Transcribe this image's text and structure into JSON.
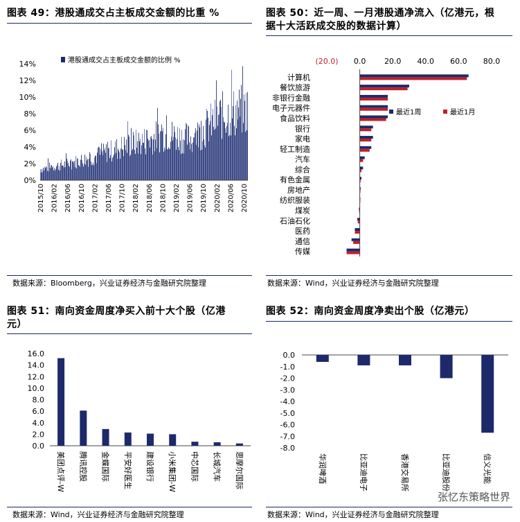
{
  "panels": {
    "p49": {
      "title": "图表 49：港股通成交占主板成交金额的比重 %",
      "source": "数据来源：Bloomberg，兴业证券经济与金融研究院整理"
    },
    "p50": {
      "title_l1": "图表 50：近一周、一月港股通净流入（亿港元，根",
      "title_l2": "据十大活跃成交股的数据计算）",
      "source": "数据来源：Wind，兴业证券经济与金融研究院整理"
    },
    "p51": {
      "title_l1": "图表 51：南向资金周度净买入前十大个股（亿港",
      "title_l2": "元）",
      "source": "数据来源：Wind，兴业证券经济与金融研究院整理"
    },
    "p52": {
      "title": "图表 52：南向资金周度净卖出个股（亿港元）",
      "source": "数据来源：Wind，兴业证券经济与金融研究院整理"
    }
  },
  "watermark": "张忆东策略世界",
  "colors": {
    "navy": "#1c2a6b",
    "red": "#c0202a",
    "rule": "#1a2a5a"
  },
  "chart_data": [
    {
      "id": "c49",
      "type": "bar",
      "legend": "港股通成交占主板成交金额的比例 %",
      "legend_position": "top-left",
      "ylim": [
        0,
        14
      ],
      "yticks": [
        "0%",
        "2%",
        "4%",
        "6%",
        "8%",
        "10%",
        "12%",
        "14%"
      ],
      "xticks": [
        "2015/10",
        "2016/02",
        "2016/06",
        "2016/10",
        "2017/02",
        "2017/06",
        "2017/10",
        "2018/02",
        "2018/06",
        "2018/10",
        "2019/02",
        "2019/06",
        "2019/10",
        "2020/02",
        "2020/06",
        "2020/10"
      ],
      "trend_anchors": [
        [
          0,
          1.5
        ],
        [
          2,
          2.2
        ],
        [
          4,
          3.2
        ],
        [
          6,
          4.5
        ],
        [
          8,
          5.5
        ],
        [
          9,
          6.2
        ],
        [
          10,
          5.8
        ],
        [
          11,
          5.5
        ],
        [
          12,
          7.0
        ],
        [
          13,
          8.5
        ],
        [
          14,
          9.0
        ],
        [
          15,
          9.5
        ]
      ]
    },
    {
      "id": "c50",
      "type": "bar",
      "orientation": "horizontal",
      "xlim": [
        -20,
        80
      ],
      "xticks": [
        "(20.0)",
        "0.0",
        "20.0",
        "40.0",
        "60.0",
        "80.0"
      ],
      "categories": [
        "计算机",
        "餐饮旅游",
        "非银行金融",
        "电子元器件",
        "食品饮料",
        "银行",
        "家电",
        "轻工制造",
        "汽车",
        "综合",
        "有色金属",
        "房地产",
        "纺织服装",
        "煤炭",
        "石油石化",
        "医药",
        "通信",
        "传媒"
      ],
      "series": [
        {
          "name": "最近1周",
          "color": "#1c2a6b",
          "values": [
            66,
            30,
            17,
            17,
            17,
            8,
            8,
            7,
            3,
            2,
            1,
            0.5,
            0.3,
            -0.5,
            -1.5,
            -3,
            -5,
            -8
          ]
        },
        {
          "name": "最近1月",
          "color": "#c0202a",
          "values": [
            65,
            29,
            17,
            17,
            16,
            7,
            7,
            6,
            2,
            1,
            0.5,
            0.4,
            0.2,
            -0.4,
            -1.2,
            -3,
            -4,
            -8
          ]
        }
      ],
      "legend_position": "right"
    },
    {
      "id": "c51",
      "type": "bar",
      "ylim": [
        0,
        16
      ],
      "yticks": [
        "0.0",
        "2.0",
        "4.0",
        "6.0",
        "8.0",
        "10.0",
        "12.0",
        "14.0",
        "16.0"
      ],
      "categories": [
        "美团点评-W",
        "腾讯控股",
        "金蝶国际",
        "平安好医生",
        "建设银行",
        "小米集团-W",
        "中芯国际",
        "长城汽车",
        "思摩尔国际"
      ],
      "values": [
        15.2,
        6.1,
        2.9,
        2.3,
        2.1,
        2.0,
        0.7,
        0.6,
        0.4
      ]
    },
    {
      "id": "c52",
      "type": "bar",
      "ylim": [
        -8,
        0
      ],
      "yticks": [
        "0.0",
        "-1.0",
        "-2.0",
        "-3.0",
        "-4.0",
        "-5.0",
        "-6.0",
        "-7.0",
        "-8.0"
      ],
      "categories": [
        "华润啤酒",
        "比亚迪电子",
        "香港交易所",
        "比亚迪股份",
        "信义光能"
      ],
      "values": [
        -0.6,
        -0.9,
        -0.9,
        -2.0,
        -6.7
      ]
    }
  ]
}
